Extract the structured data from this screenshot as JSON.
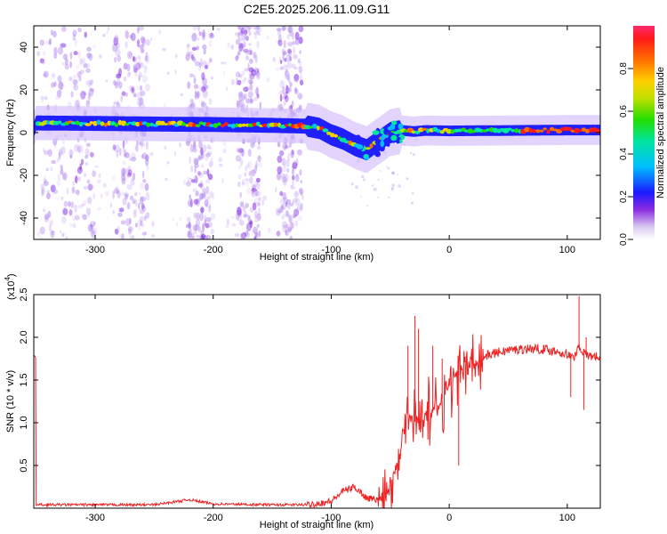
{
  "title": "C2E5.2025.206.11.09.G11",
  "chart_data": [
    {
      "type": "heatmap",
      "xlabel": "Height of straight line (km)",
      "ylabel": "Frequency (Hz)",
      "xlim": [
        -352,
        128
      ],
      "ylim": [
        -50,
        50
      ],
      "xticks": [
        -300,
        -200,
        -100,
        0,
        100
      ],
      "yticks": [
        -40,
        -20,
        0,
        20,
        40
      ],
      "colorbar": {
        "label": "Normalized spectral amplitude",
        "range": [
          0,
          1
        ],
        "ticks": [
          0.0,
          0.2,
          0.4,
          0.6,
          0.8
        ],
        "tick_labels": [
          "0.0",
          "0.2",
          "0.4",
          "0.6",
          "0.8"
        ]
      },
      "ridge": [
        {
          "x": -350,
          "f": 4.5
        },
        {
          "x": -300,
          "f": 4.3
        },
        {
          "x": -250,
          "f": 4.0
        },
        {
          "x": -200,
          "f": 3.8
        },
        {
          "x": -150,
          "f": 3.4
        },
        {
          "x": -120,
          "f": 3.0
        },
        {
          "x": -110,
          "f": 2.0
        },
        {
          "x": -100,
          "f": -1.0
        },
        {
          "x": -90,
          "f": -3.0
        },
        {
          "x": -80,
          "f": -6.0
        },
        {
          "x": -70,
          "f": -8.0
        },
        {
          "x": -60,
          "f": -4.0
        },
        {
          "x": -50,
          "f": 0.0
        },
        {
          "x": -40,
          "f": 1.0
        },
        {
          "x": -30,
          "f": 0.5
        },
        {
          "x": -20,
          "f": 1.0
        },
        {
          "x": 0,
          "f": 0.8
        },
        {
          "x": 50,
          "f": 1.0
        },
        {
          "x": 100,
          "f": 1.2
        },
        {
          "x": 128,
          "f": 1.2
        }
      ]
    },
    {
      "type": "line",
      "xlabel": "Height of straight line (km)",
      "ylabel": "SNR (10 * v/v)",
      "y_multiplier": "(x10",
      "y_multiplier_exp": "4",
      "xlim": [
        -352,
        128
      ],
      "ylim": [
        0,
        2.5
      ],
      "xticks": [
        -300,
        -200,
        -100,
        0,
        100
      ],
      "yticks": [
        0.5,
        1.0,
        1.5,
        2.0,
        2.5
      ],
      "ytick_labels": [
        "0.5",
        "1.0",
        "1.5",
        "2.0",
        "2.5"
      ],
      "color": "#ee2222",
      "series": [
        {
          "x": [
            -350,
            -300,
            -250,
            -220,
            -200,
            -150,
            -120,
            -100,
            -90,
            -80,
            -70,
            -60,
            -50,
            -45,
            -40,
            -35,
            -30,
            -25,
            -20,
            -15,
            -10,
            -5,
            0,
            10,
            20,
            30,
            40,
            50,
            60,
            70,
            80,
            90,
            100,
            105,
            110,
            115,
            120,
            128
          ],
          "y": [
            0.04,
            0.04,
            0.04,
            0.1,
            0.05,
            0.04,
            0.04,
            0.08,
            0.2,
            0.25,
            0.12,
            0.1,
            0.25,
            0.5,
            0.9,
            1.1,
            1.0,
            1.05,
            1.1,
            1.1,
            1.2,
            1.3,
            1.45,
            1.6,
            1.7,
            1.78,
            1.82,
            1.85,
            1.86,
            1.87,
            1.86,
            1.84,
            1.8,
            1.75,
            1.9,
            1.8,
            1.78,
            1.77
          ]
        }
      ],
      "spikes": [
        {
          "x": -35,
          "y": 1.9
        },
        {
          "x": -29,
          "y": 2.25
        },
        {
          "x": -26,
          "y": 2.1
        },
        {
          "x": -14,
          "y": 1.9
        },
        {
          "x": -6,
          "y": 1.75
        },
        {
          "x": 8,
          "y": 0.5
        },
        {
          "x": 103,
          "y": 1.3
        },
        {
          "x": 110,
          "y": 2.48
        },
        {
          "x": 114,
          "y": 1.15
        },
        {
          "x": 116,
          "y": 2.0
        }
      ]
    }
  ]
}
